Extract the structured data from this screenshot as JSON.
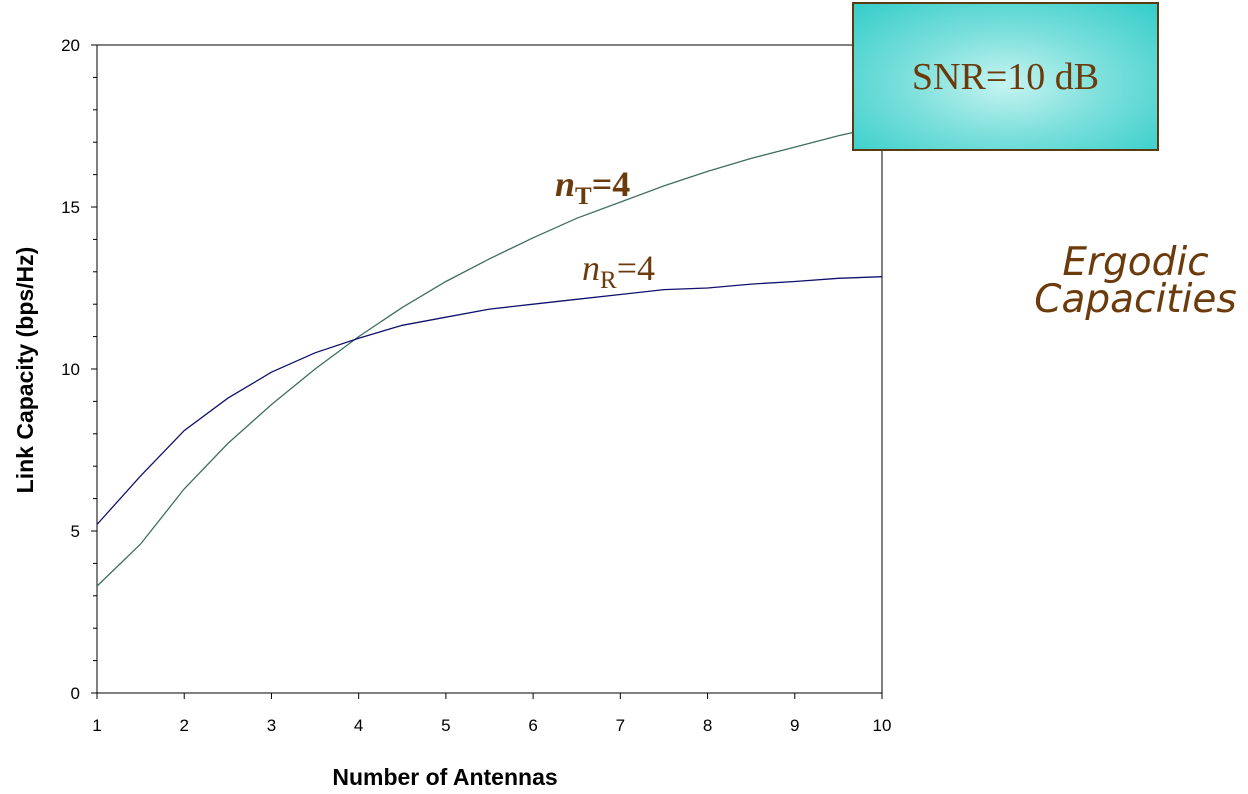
{
  "chart_data": {
    "type": "line",
    "xlabel": "Number of Antennas",
    "ylabel": "Link Capacity (bps/Hz)",
    "xlim": [
      1,
      10
    ],
    "ylim": [
      0,
      20
    ],
    "xticks": [
      "1",
      "2",
      "3",
      "4",
      "5",
      "6",
      "7",
      "8",
      "9",
      "10"
    ],
    "yticks": [
      "0",
      "5",
      "10",
      "15",
      "20"
    ],
    "x": [
      1,
      1.5,
      2,
      2.5,
      3,
      3.5,
      4,
      4.5,
      5,
      5.5,
      6,
      6.5,
      7,
      7.5,
      8,
      8.5,
      9,
      9.5,
      10
    ],
    "series": [
      {
        "color": "#3e6e62",
        "values": [
          3.3,
          4.6,
          6.3,
          7.7,
          8.9,
          10.0,
          11.0,
          11.9,
          12.7,
          13.4,
          14.05,
          14.65,
          15.15,
          15.65,
          16.1,
          16.5,
          16.85,
          17.2,
          17.5
        ]
      },
      {
        "color": "#10106e",
        "values": [
          5.2,
          6.7,
          8.1,
          9.1,
          9.9,
          10.5,
          10.95,
          11.35,
          11.6,
          11.85,
          12.0,
          12.15,
          12.3,
          12.45,
          12.5,
          12.62,
          12.7,
          12.8,
          12.85
        ]
      }
    ],
    "annotations": {
      "nt": {
        "var": "n",
        "sub": "T",
        "rest": "=4"
      },
      "nr": {
        "var": "n",
        "sub": "R",
        "rest": "=4"
      },
      "snr": "SNR=10 dB"
    },
    "side_label": [
      "Ergodic",
      "Capacities"
    ],
    "grid": false
  }
}
